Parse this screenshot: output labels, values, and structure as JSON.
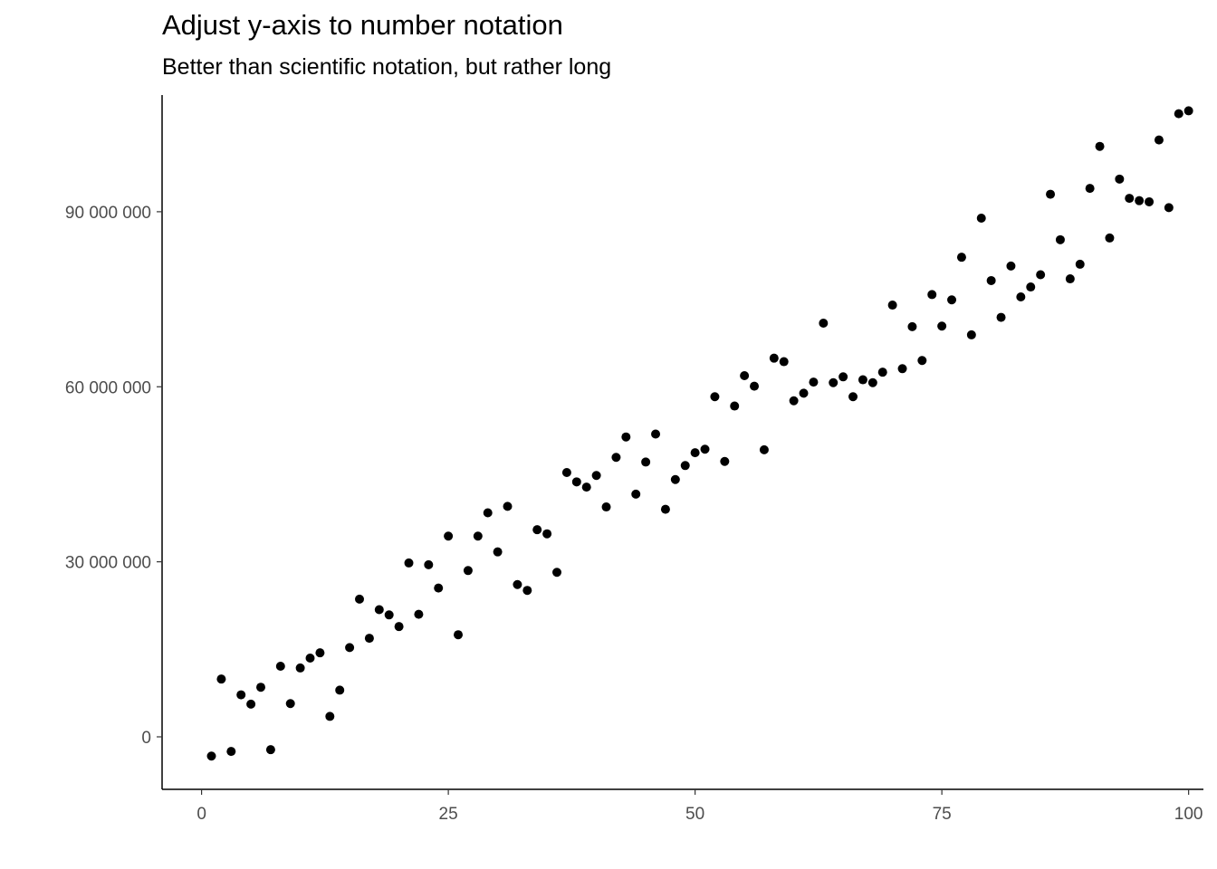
{
  "chart_data": {
    "type": "scatter",
    "title": "Adjust y-axis to number notation",
    "subtitle": "Better than scientific notation, but rather long",
    "xlabel": "",
    "ylabel": "",
    "xlim": [
      -4,
      101.5
    ],
    "ylim": [
      -9000000,
      110000000
    ],
    "x_ticks": [
      0,
      25,
      50,
      75,
      100
    ],
    "x_tick_labels": [
      "0",
      "25",
      "50",
      "75",
      "100"
    ],
    "y_ticks": [
      0,
      30000000,
      60000000,
      90000000
    ],
    "y_tick_labels": [
      "0",
      "30 000 000",
      "60 000 000",
      "90 000 000"
    ],
    "grid": false,
    "legend": "none",
    "point_color": "#000000",
    "x": [
      1,
      2,
      3,
      4,
      5,
      6,
      7,
      8,
      9,
      10,
      11,
      12,
      13,
      14,
      15,
      16,
      17,
      18,
      19,
      20,
      21,
      22,
      23,
      24,
      25,
      26,
      27,
      28,
      29,
      30,
      31,
      32,
      33,
      34,
      35,
      36,
      37,
      38,
      39,
      40,
      41,
      42,
      43,
      44,
      45,
      46,
      47,
      48,
      49,
      50,
      51,
      52,
      53,
      54,
      55,
      56,
      57,
      58,
      59,
      60,
      61,
      62,
      63,
      64,
      65,
      66,
      67,
      68,
      69,
      70,
      71,
      72,
      73,
      74,
      75,
      76,
      77,
      78,
      79,
      80,
      81,
      82,
      83,
      84,
      85,
      86,
      87,
      88,
      89,
      90,
      91,
      92,
      93,
      94,
      95,
      96,
      97,
      98,
      99,
      100
    ],
    "y": [
      -3300000,
      9900000,
      -2500000,
      7200000,
      5600000,
      8500000,
      -2200000,
      12100000,
      5700000,
      11800000,
      13500000,
      14400000,
      3500000,
      8000000,
      15300000,
      23600000,
      16900000,
      21800000,
      20900000,
      18900000,
      29800000,
      21000000,
      29500000,
      25500000,
      34400000,
      17500000,
      28500000,
      34400000,
      38400000,
      31700000,
      39500000,
      26100000,
      25100000,
      35500000,
      34800000,
      28200000,
      45300000,
      43700000,
      42800000,
      44800000,
      39400000,
      47900000,
      51400000,
      41600000,
      47100000,
      51900000,
      39000000,
      44100000,
      46500000,
      48700000,
      49300000,
      58300000,
      47200000,
      56700000,
      61900000,
      60100000,
      49200000,
      64900000,
      64300000,
      57600000,
      58900000,
      60800000,
      70900000,
      60700000,
      61700000,
      58300000,
      61200000,
      60700000,
      62500000,
      74000000,
      63100000,
      70300000,
      64500000,
      75800000,
      70400000,
      74900000,
      82200000,
      68900000,
      88900000,
      78200000,
      71900000,
      80700000,
      75400000,
      77100000,
      79200000,
      93000000,
      85200000,
      78500000,
      81000000,
      94000000,
      101200000,
      85500000,
      95600000,
      92300000,
      91900000,
      91700000,
      102300000,
      90700000,
      106800000,
      107300000
    ]
  }
}
